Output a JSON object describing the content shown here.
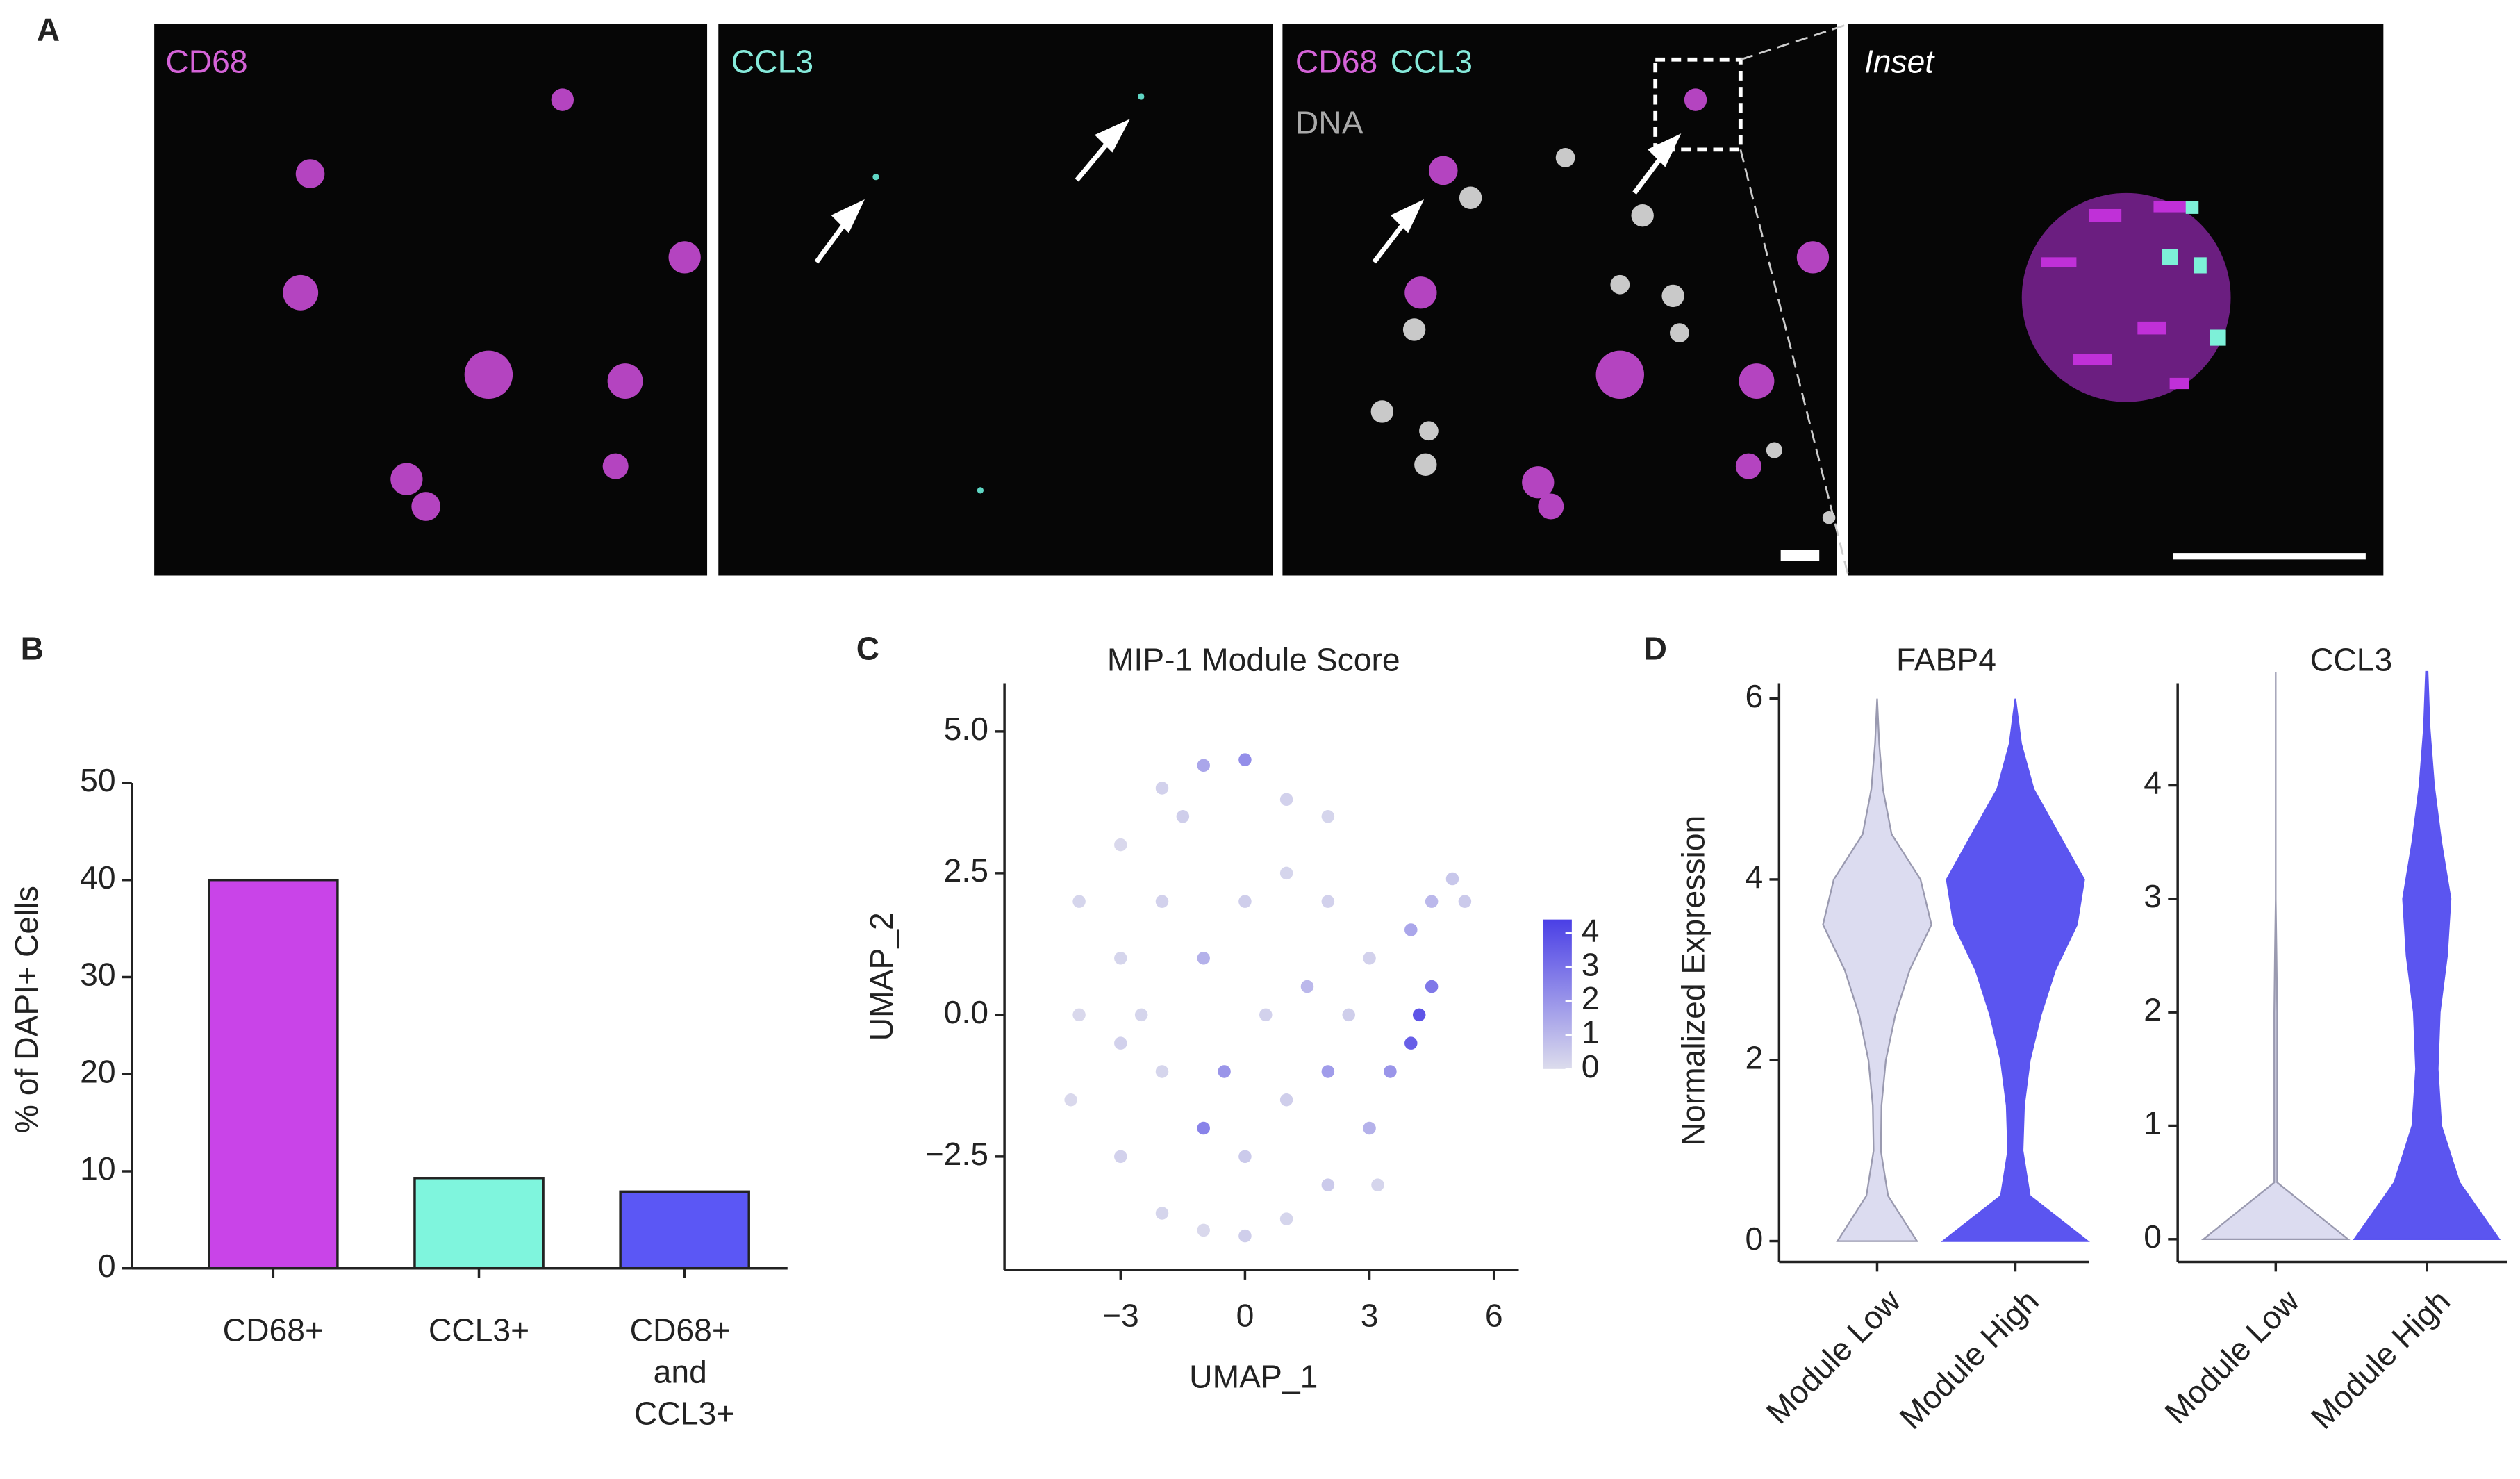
{
  "panel_labels": [
    "A",
    "B",
    "C",
    "D"
  ],
  "panel_a": {
    "images": [
      {
        "labels": [
          "CD68"
        ],
        "label_colors": [
          "#d563d8"
        ]
      },
      {
        "labels": [
          "CCL3"
        ],
        "label_colors": [
          "#86eadb"
        ]
      },
      {
        "labels": [
          "CD68",
          "CCL3",
          "DNA"
        ],
        "label_colors": [
          "#d563d8",
          "#86eadb",
          "#a9a9a9"
        ]
      },
      {
        "labels": [
          "Inset"
        ],
        "label_colors": [
          "#ffffff"
        ]
      }
    ]
  },
  "chart_data": [
    {
      "type": "bar",
      "ylabel": "% of DAPI+ Cells",
      "categories": [
        "CD68+",
        "CCL3+",
        "CD68+ and CCL3+"
      ],
      "values": [
        40,
        9.3,
        7.9
      ],
      "colors": [
        "#c944e8",
        "#7ff5dd",
        "#5b57f5"
      ],
      "ylim": [
        0,
        50
      ],
      "yticks": [
        0,
        10,
        20,
        30,
        40,
        50
      ]
    },
    {
      "type": "scatter",
      "title": "MIP-1 Module Score",
      "xlabel": "UMAP_1",
      "ylabel": "UMAP_2",
      "x": [
        -4,
        -3,
        -2,
        -1,
        0,
        -1.5,
        -3,
        -4,
        -4.2,
        -3,
        -2,
        -1,
        0,
        1,
        2,
        3,
        3.5,
        4,
        4.2,
        4.5,
        4,
        4.5,
        5,
        5.3,
        -2,
        -1,
        0,
        1,
        2,
        1.5,
        0.5,
        -0.5,
        -2,
        -3,
        1,
        2,
        2.5,
        3,
        0,
        -1,
        2,
        1,
        -2.5,
        3.2
      ],
      "y": [
        2,
        3,
        4,
        4.4,
        4.5,
        3.5,
        1,
        0,
        -1.5,
        -2.5,
        -3.5,
        -3.8,
        -3.9,
        -3.6,
        -3,
        -2,
        -1,
        -0.5,
        0,
        0.5,
        1.5,
        2,
        2.4,
        2,
        2,
        1,
        2,
        2.5,
        2,
        0.5,
        0,
        -1,
        -1,
        -0.5,
        -1.5,
        -1,
        0,
        1,
        -2.5,
        -2,
        3.5,
        3.8,
        0,
        -3
      ],
      "values": [
        0.2,
        0.1,
        0.3,
        1.5,
        2.2,
        0.4,
        0.2,
        0.1,
        0.1,
        0.3,
        0.2,
        0.1,
        0.4,
        0.2,
        0.5,
        1.2,
        2.0,
        3.5,
        3.8,
        2.8,
        1.5,
        1.0,
        0.6,
        0.5,
        0.3,
        1.2,
        0.4,
        0.2,
        0.3,
        1.0,
        0.3,
        2.0,
        0.2,
        0.3,
        0.4,
        1.8,
        0.4,
        0.3,
        0.5,
        2.5,
        0.2,
        0.3,
        0.2,
        0.2
      ],
      "xlim": [
        -5.8,
        6.6
      ],
      "ylim": [
        -4.5,
        5.85
      ],
      "xticks": [
        {
          "value": -3,
          "label": "−3"
        },
        0,
        3,
        6
      ],
      "yticks": [
        {
          "value": -2.5,
          "label": "−2.5"
        },
        {
          "value": 0,
          "label": "0.0"
        },
        2.5,
        {
          "value": 5,
          "label": "5.0"
        }
      ],
      "colorbar": {
        "lim": [
          0,
          4.4
        ],
        "ticks": [
          0,
          1,
          2,
          3,
          4
        ],
        "colors": [
          "#dcdcec",
          "#4a3fe6"
        ]
      }
    },
    {
      "type": "violin",
      "title": "FABP4",
      "ylabel": "Normalized Expression",
      "categories": [
        "Module Low",
        "Module High"
      ],
      "colors": [
        "#dcdcf0",
        "#5b55f0"
      ],
      "grid_y": [
        0,
        0.5,
        1,
        1.5,
        2,
        2.5,
        3,
        3.5,
        4,
        4.5,
        5,
        5.5,
        6
      ],
      "density": [
        [
          0.55,
          0.15,
          0.05,
          0.06,
          0.12,
          0.25,
          0.45,
          0.75,
          0.6,
          0.2,
          0.08,
          0.03,
          0
        ],
        [
          1.0,
          0.2,
          0.1,
          0.12,
          0.2,
          0.35,
          0.55,
          0.85,
          0.95,
          0.6,
          0.25,
          0.08,
          0
        ]
      ],
      "ylim": [
        -0.23,
        6.17
      ],
      "yticks": [
        0,
        2,
        4,
        6
      ]
    },
    {
      "type": "violin",
      "title": "CCL3",
      "categories": [
        "Module Low",
        "Module High"
      ],
      "colors": [
        "#dcdcf0",
        "#5b55f0"
      ],
      "grid_y": [
        0,
        0.5,
        1,
        1.5,
        2,
        2.5,
        3,
        3.5,
        4,
        4.5,
        5
      ],
      "density": [
        [
          1.0,
          0.02,
          0.02,
          0.02,
          0.02,
          0.01,
          0,
          0,
          0,
          0,
          0
        ],
        [
          1.0,
          0.45,
          0.2,
          0.15,
          0.18,
          0.28,
          0.33,
          0.2,
          0.1,
          0.04,
          0.01
        ]
      ],
      "ylim": [
        -0.2,
        4.9
      ],
      "yticks": [
        0,
        1,
        2,
        3,
        4
      ]
    }
  ]
}
